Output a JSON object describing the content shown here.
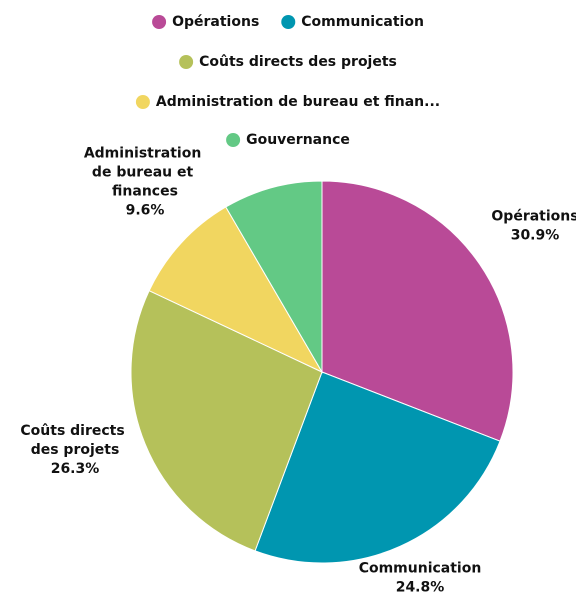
{
  "chart_data": {
    "type": "pie",
    "categories": [
      "Opérations",
      "Communication",
      "Coûts directs des projets",
      "Administration de bureau et finances",
      "Gouvernance"
    ],
    "legend_labels": [
      "Opérations",
      "Communication",
      "Coûts directs des projets",
      "Administration de bureau et finan...",
      "Gouvernance"
    ],
    "values": [
      30.9,
      24.8,
      26.3,
      9.6,
      8.4
    ],
    "value_labels": [
      "30.9%",
      "24.8%",
      "26.3%",
      "9.6%",
      null
    ],
    "colors": [
      "#b94a97",
      "#0096b0",
      "#b5c15a",
      "#f1d660",
      "#63c985"
    ]
  }
}
